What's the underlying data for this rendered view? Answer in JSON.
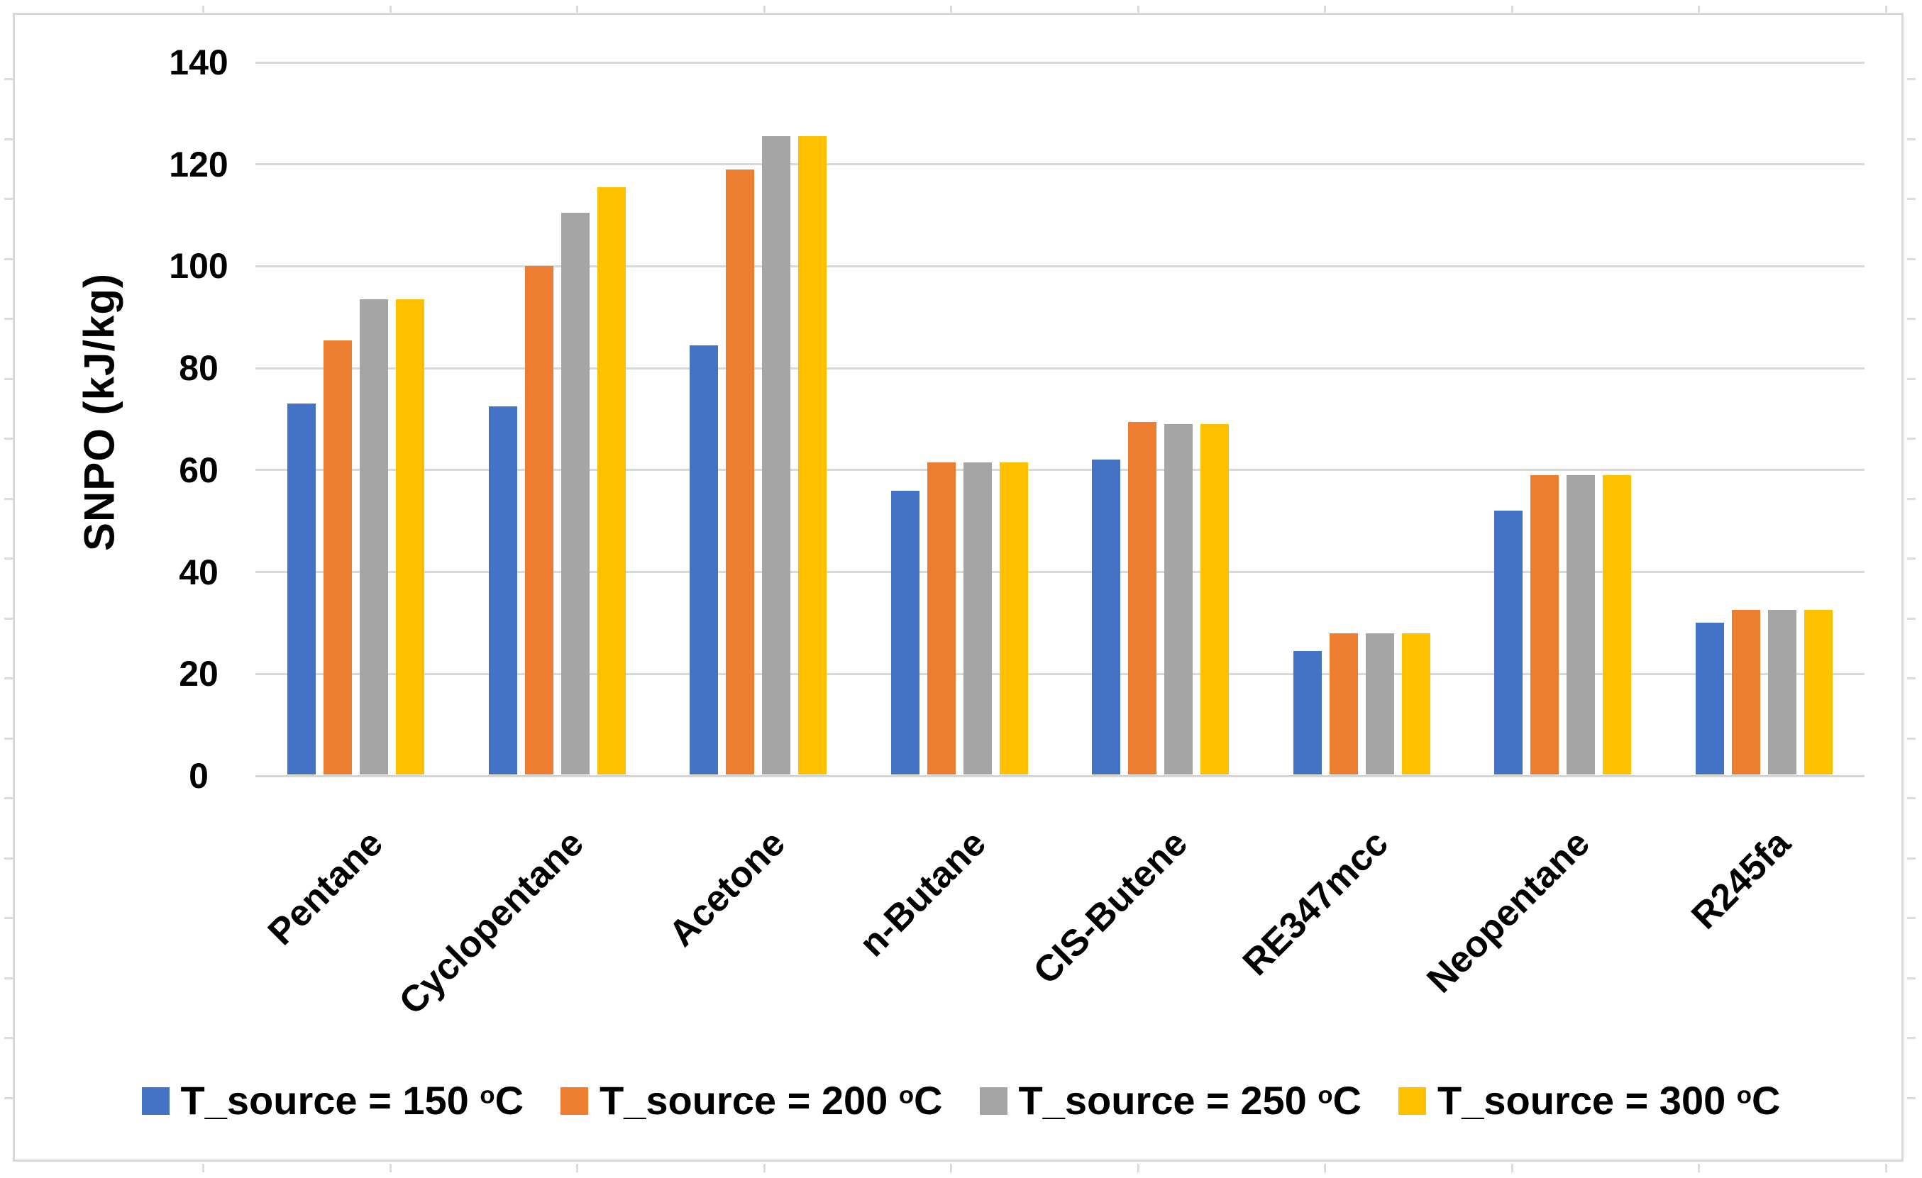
{
  "chart_data": {
    "type": "bar",
    "title": "",
    "ylabel": "SNPO (kJ/kg)",
    "xlabel": "",
    "ylim": [
      0,
      140
    ],
    "ytick_step": 20,
    "yticks": [
      "0",
      "20",
      "40",
      "60",
      "80",
      "100",
      "120",
      "140"
    ],
    "grid": true,
    "gridline_color": "#D9D9D9",
    "background_color": "#FFFFFF",
    "chart_border_color": "#D9D9D9",
    "text_color": "#000000",
    "legend_position": "bottom-center",
    "categories": [
      "Pentane",
      "Cyclopentane",
      "Acetone",
      "n-Butane",
      "CIS-Butene",
      "RE347mcc",
      "Neopentane",
      "R245fa"
    ],
    "series": [
      {
        "name": "T_source = 150 °C",
        "label_parts": {
          "prefix": "T_source = 150 ",
          "sup": "o",
          "suffix": "C"
        },
        "color": "#4472C4",
        "values": [
          73,
          72.5,
          84.5,
          56,
          62,
          24.5,
          52,
          30
        ]
      },
      {
        "name": "T_source = 200 °C",
        "label_parts": {
          "prefix": "T_source = 200 ",
          "sup": "o",
          "suffix": "C"
        },
        "color": "#ED7D31",
        "values": [
          85.5,
          100,
          119,
          61.5,
          69.5,
          28,
          59,
          32.5
        ]
      },
      {
        "name": "T_source = 250 °C",
        "label_parts": {
          "prefix": "T_source = 250 ",
          "sup": "o",
          "suffix": "C"
        },
        "color": "#A5A5A5",
        "values": [
          93.5,
          110.5,
          125.5,
          61.5,
          69,
          28,
          59,
          32.5
        ]
      },
      {
        "name": "T_source = 300 °C",
        "label_parts": {
          "prefix": "T_source = 300 ",
          "sup": "o",
          "suffix": "C"
        },
        "color": "#FFC000",
        "values": [
          93.5,
          115.5,
          125.5,
          61.5,
          69,
          28,
          59,
          32.5
        ]
      }
    ]
  }
}
